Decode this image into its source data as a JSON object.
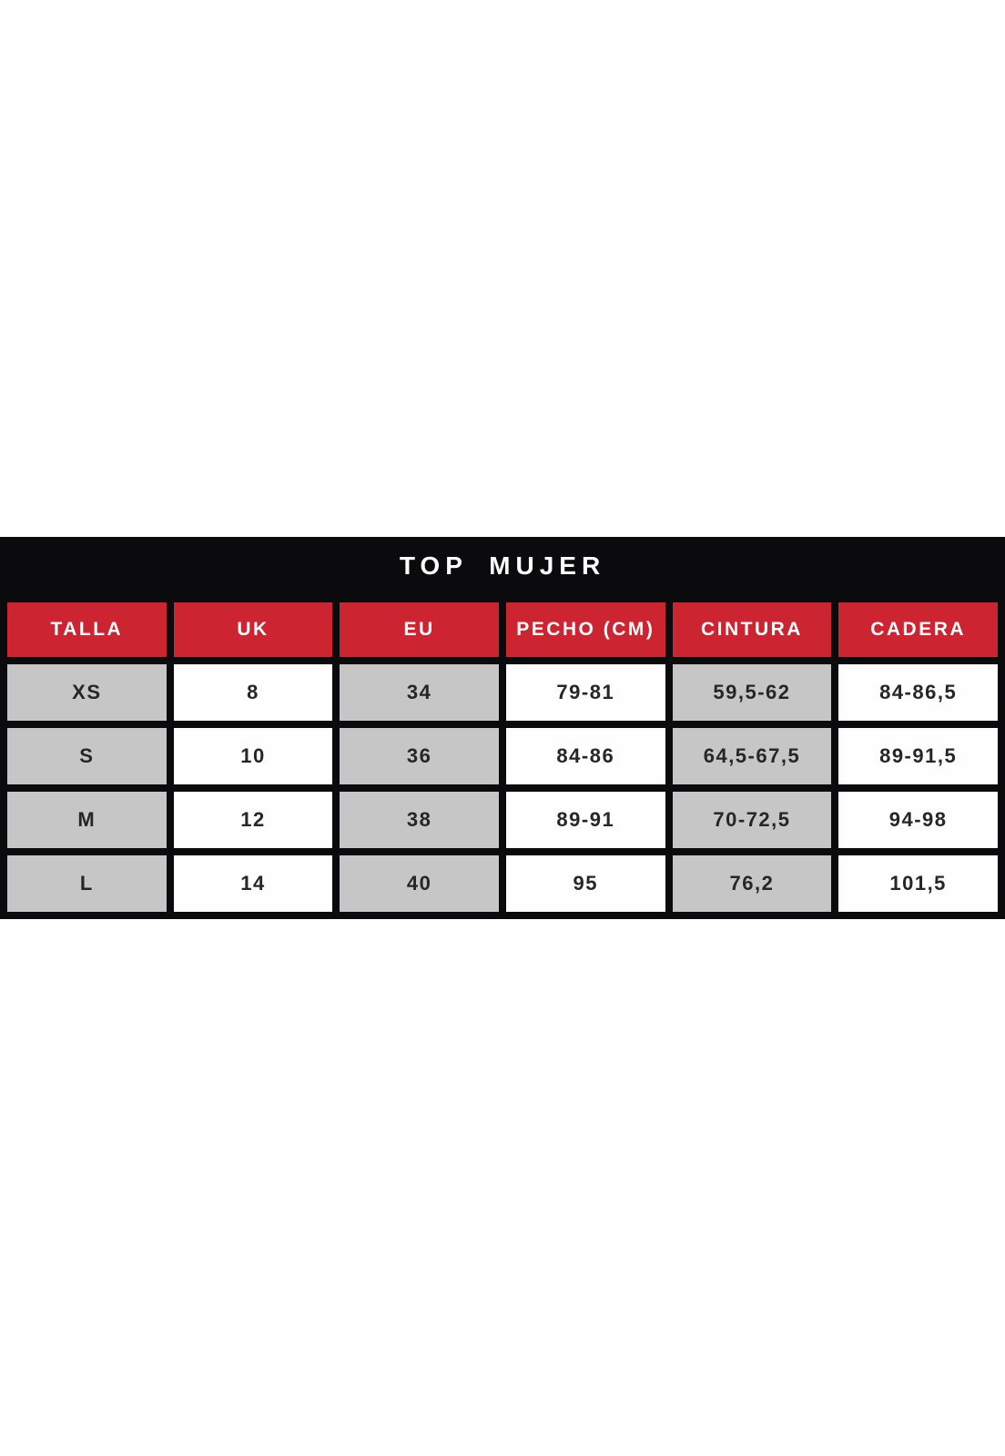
{
  "chart_data": {
    "type": "table",
    "title": "TOP MUJER",
    "columns": [
      "TALLA",
      "UK",
      "EU",
      "PECHO (CM)",
      "CINTURA",
      "CADERA"
    ],
    "rows": [
      [
        "XS",
        "8",
        "34",
        "79-81",
        "59,5-62",
        "84-86,5"
      ],
      [
        "S",
        "10",
        "36",
        "84-86",
        "64,5-67,5",
        "89-91,5"
      ],
      [
        "M",
        "12",
        "38",
        "89-91",
        "70-72,5",
        "94-98"
      ],
      [
        "L",
        "14",
        "40",
        "95",
        "76,2",
        "101,5"
      ]
    ],
    "units": "cm",
    "layout_hints": {
      "title_bar": "black full-width bar, white centered text",
      "header_row": "red cells, white text",
      "data_cells": "columns alternate gray/white, black frame gaps"
    },
    "colors": {
      "frame_black": "#0b0b0d",
      "header_red": "#cc2430",
      "header_text": "#ffffff",
      "cell_gray": "#c6c6c6",
      "cell_white": "#fefefe",
      "cell_text": "#262626",
      "page_background": "#ffffff"
    }
  }
}
